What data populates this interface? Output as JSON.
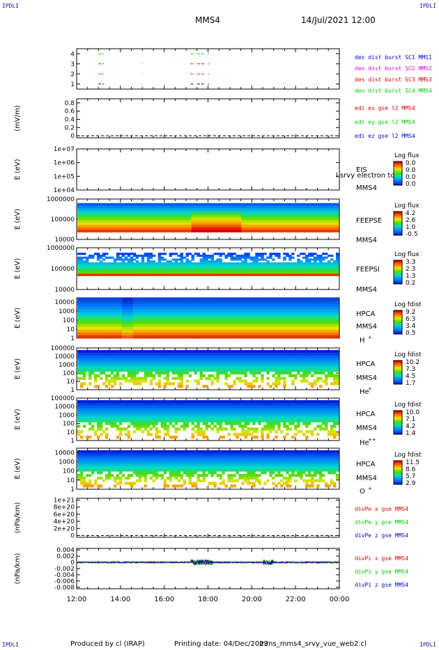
{
  "corner_tags": [
    "IPDLI",
    "IPDLI",
    "IPDLI",
    "IPDLI"
  ],
  "header": {
    "spacecraft": "MMS4",
    "datetime": "14/Jul/2021 12:00"
  },
  "footer": {
    "producer": "Produced by cl (IRAP)",
    "printing_date": "Printing date: 04/Dec/2023",
    "script": "mms_mms4_srvy_vue_web2.cl"
  },
  "colors": {
    "red": "#dd0000",
    "green": "#00cc00",
    "blue": "#0000cc",
    "magenta": "#dd00dd",
    "orange": "#ff8800"
  },
  "chart_data": [
    {
      "type": "line",
      "id": "des_burst",
      "ylabel": "",
      "yticks": [
        "1",
        "2",
        "3",
        "4"
      ],
      "ylim": [
        0.5,
        4.5
      ],
      "legend": [
        "des dist burst SC1 MMS1",
        "des dist burst SC2 MMS2",
        "des dist burst SC3 MMS3",
        "des dist burst SC4 MMS4"
      ],
      "legend_colors": [
        "blue",
        "magenta",
        "red",
        "green"
      ],
      "series": [
        {
          "sc": 4,
          "color": "green",
          "intervals": [
            [
              13.0,
              13.25
            ],
            [
              14.98,
              15.0
            ],
            [
              17.2,
              17.35
            ],
            [
              17.5,
              17.85
            ],
            [
              18.0,
              18.05
            ]
          ]
        },
        {
          "sc": 3,
          "color": "red",
          "intervals": [
            [
              13.0,
              13.25
            ],
            [
              14.98,
              15.0
            ],
            [
              17.2,
              17.35
            ],
            [
              17.5,
              17.85
            ],
            [
              18.0,
              18.05
            ]
          ]
        },
        {
          "sc": 2,
          "color": "magenta",
          "intervals": [
            [
              13.0,
              13.25
            ],
            [
              14.98,
              15.0
            ],
            [
              17.2,
              17.35
            ],
            [
              17.5,
              17.85
            ],
            [
              18.0,
              18.05
            ]
          ]
        },
        {
          "sc": 1,
          "color": "blue",
          "intervals": [
            [
              13.0,
              13.25
            ],
            [
              14.98,
              15.0
            ],
            [
              17.2,
              17.35
            ],
            [
              17.5,
              17.85
            ],
            [
              18.0,
              18.05
            ]
          ]
        }
      ]
    },
    {
      "type": "line",
      "id": "edi_e",
      "ylabel": "(mV/m)",
      "yticks": [
        "0",
        "0.2",
        "0.4",
        "0.6",
        "0.8"
      ],
      "ylim": [
        -0.05,
        0.9
      ],
      "legend": [
        "edi ex gse l2 MMS4",
        "edi ey gse l2 MMS4",
        "edi ez gse l2 MMS4"
      ],
      "legend_colors": [
        "red",
        "green",
        "blue"
      ],
      "zero_line": true
    },
    {
      "type": "heatmap",
      "id": "eis",
      "ylabel": "E (eV)",
      "yticks": [
        "1e+04",
        "1e+05",
        "1e+06",
        "1e+07"
      ],
      "ylim": [
        10000,
        10000000
      ],
      "labels": [
        "EIS",
        "MMS4"
      ],
      "overlay": "l srvy electron to",
      "colorbar": {
        "title": "Log flux",
        "ticks": [
          "0.0",
          "0.0",
          "0.0",
          "0.0"
        ]
      }
    },
    {
      "type": "heatmap",
      "id": "feeps_e",
      "ylabel": "E (eV)",
      "yticks": [
        "10000",
        "100000",
        "1000000"
      ],
      "ylim": [
        10000,
        1000000
      ],
      "labels": [
        "FEEPSE",
        "MMS4"
      ],
      "colorbar": {
        "title": "Log flux",
        "ticks": [
          "4.2",
          "2.6",
          "1.0",
          "-0.5"
        ]
      }
    },
    {
      "type": "heatmap",
      "id": "feeps_i",
      "ylabel": "E (eV)",
      "yticks": [
        "10000",
        "100000",
        "1000000"
      ],
      "ylim": [
        10000,
        1000000
      ],
      "labels": [
        "FEEPSI",
        "MMS4"
      ],
      "colorbar": {
        "title": "Log flux",
        "ticks": [
          "3.3",
          "2.3",
          "1.3",
          "0.2"
        ]
      }
    },
    {
      "type": "heatmap",
      "id": "hpca_h",
      "ylabel": "E (eV)",
      "yticks": [
        "1",
        "10",
        "100",
        "1000",
        "10000"
      ],
      "ylim": [
        1,
        30000
      ],
      "labels": [
        "HPCA",
        "MMS4"
      ],
      "species": "H",
      "species_charge": "+",
      "colorbar": {
        "title": "Log fdist",
        "ticks": [
          "9.2",
          "6.3",
          "3.4",
          "0.5"
        ]
      }
    },
    {
      "type": "heatmap",
      "id": "hpca_he",
      "ylabel": "E (eV)",
      "yticks": [
        "1",
        "10",
        "100",
        "1000",
        "10000",
        "100000"
      ],
      "ylim": [
        1,
        100000
      ],
      "labels": [
        "HPCA",
        "MMS4"
      ],
      "species": "He",
      "species_charge": "+",
      "colorbar": {
        "title": "Log fdist",
        "ticks": [
          "10.2",
          "7.3",
          "4.5",
          "1.7"
        ]
      }
    },
    {
      "type": "heatmap",
      "id": "hpca_hepp",
      "ylabel": "E (eV)",
      "yticks": [
        "1",
        "10",
        "100",
        "1000",
        "10000",
        "100000"
      ],
      "ylim": [
        1,
        100000
      ],
      "labels": [
        "HPCA",
        "MMS4"
      ],
      "species": "He",
      "species_charge": "++",
      "colorbar": {
        "title": "Log fdist",
        "ticks": [
          "10.0",
          "7.1",
          "4.2",
          "1.4"
        ]
      }
    },
    {
      "type": "heatmap",
      "id": "hpca_o",
      "ylabel": "E (eV)",
      "yticks": [
        "1",
        "10",
        "100",
        "1000",
        "10000"
      ],
      "ylim": [
        1,
        30000
      ],
      "labels": [
        "HPCA",
        "MMS4"
      ],
      "species": "O",
      "species_charge": "+",
      "colorbar": {
        "title": "Log fdist",
        "ticks": [
          "11.5",
          "8.6",
          "5.7",
          "2.9"
        ]
      }
    },
    {
      "type": "line",
      "id": "divpe",
      "ylabel": "(nPa/km)",
      "yticks": [
        "0",
        "2e+20",
        "4e+20",
        "6e+20",
        "8e+20",
        "1e+21"
      ],
      "ylim": [
        -5e+19,
        1.05e+21
      ],
      "legend": [
        "divPe x gse MMS4",
        "divPe y gse MMS4",
        "divPe z gse MMS4"
      ],
      "legend_colors": [
        "red",
        "green",
        "blue"
      ],
      "zero_line": true
    },
    {
      "type": "line",
      "id": "divpi",
      "ylabel": "(nPa/km)",
      "yticks": [
        "-0.008",
        "-0.006",
        "-0.004",
        "-0.002",
        "0",
        "0.002",
        "0.004"
      ],
      "ylim": [
        -0.0085,
        0.0045
      ],
      "legend": [
        "divPi x gse MMS4",
        "divPi y gse MMS4",
        "divPi z gse MMS4"
      ],
      "legend_colors": [
        "red",
        "green",
        "blue"
      ],
      "zero_line": true
    }
  ],
  "time_axis": {
    "range_hours": [
      12,
      24
    ],
    "ticks": [
      {
        "t": 12,
        "label": "12:00"
      },
      {
        "t": 14,
        "label": "14:00"
      },
      {
        "t": 16,
        "label": "16:00"
      },
      {
        "t": 18,
        "label": "18:00"
      },
      {
        "t": 20,
        "label": "20:00"
      },
      {
        "t": 22,
        "label": "22:00"
      },
      {
        "t": 24,
        "label": "00:00"
      }
    ]
  }
}
